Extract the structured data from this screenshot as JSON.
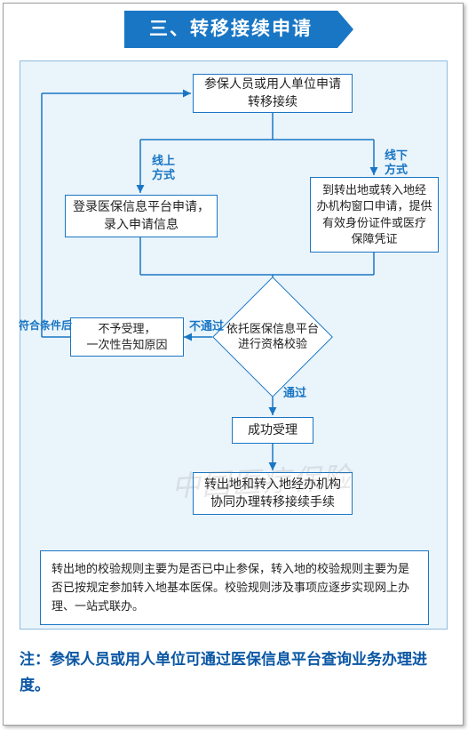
{
  "colors": {
    "primary": "#1976c4",
    "panel_bg": "#eaf4fb",
    "panel_border": "#8fbde0",
    "text": "#222222",
    "footer_text": "#0a57a4",
    "line": "#1976c4"
  },
  "title": "三、转移接续申请",
  "flowchart": {
    "type": "flowchart",
    "nodes": {
      "start": {
        "text": "参保人员或用人单位申请\n转移接续",
        "shape": "rect"
      },
      "online": {
        "text": "登录医保信息平台申请，\n录入申请信息",
        "shape": "rect"
      },
      "offline": {
        "text": "到转出地或转入地经\n办机构窗口申请，提供\n有效身份证件或医疗\n保障凭证",
        "shape": "rect"
      },
      "verify": {
        "text": "依托医保信息平台\n进行资格校验",
        "shape": "diamond"
      },
      "reject": {
        "text": "不予受理，\n一次性告知原因",
        "shape": "rect"
      },
      "accept": {
        "text": "成功受理",
        "shape": "rect"
      },
      "process": {
        "text": "转出地和转入地经办机构\n协同办理转移接续手续",
        "shape": "rect"
      },
      "rules": {
        "text": "转出地的校验规则主要为是否已中止参保，转入地的校验规则主要为是否已按规定参加转入地基本医保。校验规则涉及事项应逐步实现网上办理、一站式联办。",
        "shape": "note"
      }
    },
    "edge_labels": {
      "online_way": "线上\n方式",
      "offline_way": "线下\n方式",
      "fail": "不通过",
      "pass": "通过",
      "after_cond": "符合条件后"
    }
  },
  "watermark": "中国医疗保险",
  "footer": "注：参保人员或用人单位可通过医保信息平台查询业务办理进度。"
}
